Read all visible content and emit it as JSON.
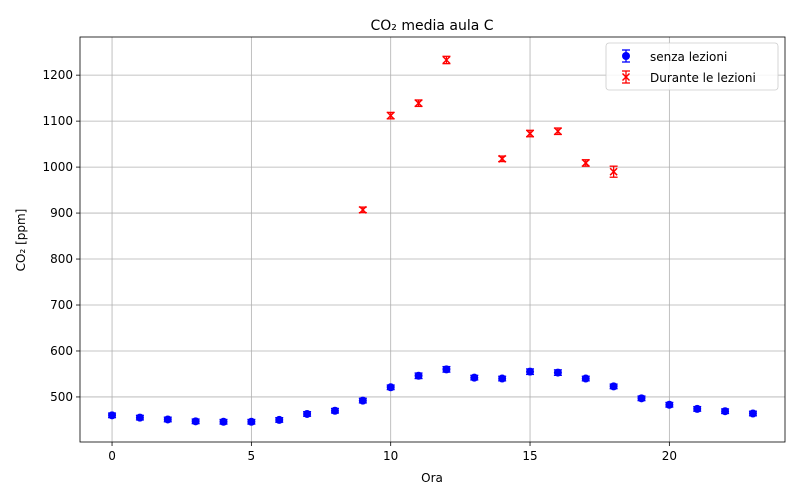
{
  "chart_data": {
    "type": "scatter",
    "title": "CO₂ media aula C",
    "xlabel": "Ora",
    "ylabel": "CO₂ [ppm]",
    "xlim": [
      -1.15,
      24.15
    ],
    "ylim": [
      402,
      1283
    ],
    "xticks": [
      0,
      5,
      10,
      15,
      20
    ],
    "yticks": [
      500,
      600,
      700,
      800,
      900,
      1000,
      1100,
      1200
    ],
    "grid": true,
    "legend_position": "top-right",
    "series": [
      {
        "name": "senza lezioni",
        "color": "#0000ff",
        "marker": "circle",
        "points": [
          {
            "x": 0,
            "y": 460,
            "err": 5
          },
          {
            "x": 1,
            "y": 455,
            "err": 5
          },
          {
            "x": 2,
            "y": 451,
            "err": 5
          },
          {
            "x": 3,
            "y": 447,
            "err": 5
          },
          {
            "x": 4,
            "y": 446,
            "err": 5
          },
          {
            "x": 5,
            "y": 446,
            "err": 5
          },
          {
            "x": 6,
            "y": 450,
            "err": 5
          },
          {
            "x": 7,
            "y": 463,
            "err": 5
          },
          {
            "x": 8,
            "y": 470,
            "err": 5
          },
          {
            "x": 9,
            "y": 492,
            "err": 5
          },
          {
            "x": 10,
            "y": 521,
            "err": 5
          },
          {
            "x": 11,
            "y": 546,
            "err": 6
          },
          {
            "x": 12,
            "y": 560,
            "err": 6
          },
          {
            "x": 13,
            "y": 542,
            "err": 5
          },
          {
            "x": 14,
            "y": 540,
            "err": 5
          },
          {
            "x": 15,
            "y": 555,
            "err": 6
          },
          {
            "x": 16,
            "y": 553,
            "err": 6
          },
          {
            "x": 17,
            "y": 540,
            "err": 5
          },
          {
            "x": 18,
            "y": 523,
            "err": 5
          },
          {
            "x": 19,
            "y": 497,
            "err": 5
          },
          {
            "x": 20,
            "y": 483,
            "err": 5
          },
          {
            "x": 21,
            "y": 474,
            "err": 5
          },
          {
            "x": 22,
            "y": 469,
            "err": 5
          },
          {
            "x": 23,
            "y": 464,
            "err": 5
          }
        ]
      },
      {
        "name": "Durante le lezioni",
        "color": "#ff0000",
        "marker": "x",
        "points": [
          {
            "x": 9,
            "y": 907,
            "err": 6
          },
          {
            "x": 10,
            "y": 1112,
            "err": 7
          },
          {
            "x": 11,
            "y": 1139,
            "err": 7
          },
          {
            "x": 12,
            "y": 1233,
            "err": 8
          },
          {
            "x": 14,
            "y": 1018,
            "err": 6
          },
          {
            "x": 15,
            "y": 1073,
            "err": 7
          },
          {
            "x": 16,
            "y": 1078,
            "err": 7
          },
          {
            "x": 17,
            "y": 1009,
            "err": 7
          },
          {
            "x": 18,
            "y": 990,
            "err": 12
          }
        ]
      }
    ]
  }
}
